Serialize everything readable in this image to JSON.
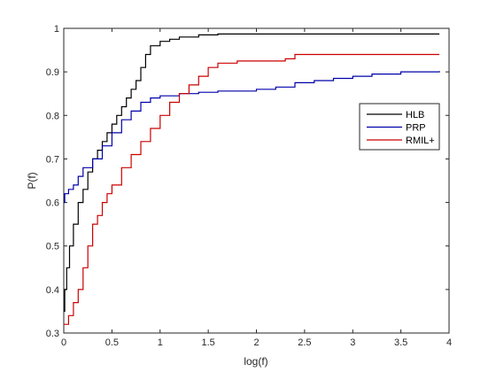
{
  "chart_data": {
    "type": "line",
    "xlabel": "log(f)",
    "ylabel": "P(f)",
    "xlim": [
      0,
      4
    ],
    "ylim": [
      0.3,
      1
    ],
    "xticks": [
      "0",
      "0.5",
      "1",
      "1.5",
      "2",
      "2.5",
      "3",
      "3.5",
      "4"
    ],
    "yticks": [
      "0.3",
      "0.4",
      "0.5",
      "0.6",
      "0.7",
      "0.8",
      "0.9",
      "1"
    ],
    "grid": false,
    "legend_position": "right",
    "series": [
      {
        "name": "HLB",
        "color": "#000000",
        "points": [
          [
            0,
            0.35
          ],
          [
            0.01,
            0.4
          ],
          [
            0.03,
            0.45
          ],
          [
            0.06,
            0.5
          ],
          [
            0.1,
            0.55
          ],
          [
            0.15,
            0.6
          ],
          [
            0.2,
            0.63
          ],
          [
            0.25,
            0.67
          ],
          [
            0.3,
            0.7
          ],
          [
            0.35,
            0.72
          ],
          [
            0.4,
            0.74
          ],
          [
            0.45,
            0.76
          ],
          [
            0.5,
            0.78
          ],
          [
            0.55,
            0.8
          ],
          [
            0.6,
            0.82
          ],
          [
            0.65,
            0.84
          ],
          [
            0.7,
            0.86
          ],
          [
            0.75,
            0.88
          ],
          [
            0.8,
            0.91
          ],
          [
            0.85,
            0.94
          ],
          [
            0.9,
            0.96
          ],
          [
            1.0,
            0.97
          ],
          [
            1.1,
            0.975
          ],
          [
            1.2,
            0.98
          ],
          [
            1.4,
            0.985
          ],
          [
            1.6,
            0.987
          ],
          [
            3.9,
            0.987
          ]
        ]
      },
      {
        "name": "PRP",
        "color": "#0000aa",
        "points": [
          [
            0,
            0.6
          ],
          [
            0.01,
            0.62
          ],
          [
            0.05,
            0.63
          ],
          [
            0.1,
            0.64
          ],
          [
            0.15,
            0.66
          ],
          [
            0.2,
            0.68
          ],
          [
            0.3,
            0.7
          ],
          [
            0.4,
            0.73
          ],
          [
            0.5,
            0.76
          ],
          [
            0.6,
            0.79
          ],
          [
            0.7,
            0.81
          ],
          [
            0.8,
            0.83
          ],
          [
            0.9,
            0.84
          ],
          [
            1.0,
            0.845
          ],
          [
            1.2,
            0.85
          ],
          [
            1.4,
            0.853
          ],
          [
            1.6,
            0.856
          ],
          [
            2.0,
            0.86
          ],
          [
            2.2,
            0.865
          ],
          [
            2.4,
            0.875
          ],
          [
            2.6,
            0.88
          ],
          [
            2.8,
            0.885
          ],
          [
            3.0,
            0.89
          ],
          [
            3.2,
            0.895
          ],
          [
            3.5,
            0.9
          ],
          [
            3.9,
            0.902
          ]
        ]
      },
      {
        "name": "RMIL+",
        "color": "#cc0000",
        "points": [
          [
            0,
            0.32
          ],
          [
            0.05,
            0.34
          ],
          [
            0.1,
            0.37
          ],
          [
            0.15,
            0.4
          ],
          [
            0.2,
            0.45
          ],
          [
            0.25,
            0.5
          ],
          [
            0.3,
            0.55
          ],
          [
            0.35,
            0.57
          ],
          [
            0.4,
            0.6
          ],
          [
            0.45,
            0.62
          ],
          [
            0.5,
            0.64
          ],
          [
            0.6,
            0.68
          ],
          [
            0.7,
            0.71
          ],
          [
            0.8,
            0.74
          ],
          [
            0.9,
            0.77
          ],
          [
            1.0,
            0.8
          ],
          [
            1.1,
            0.83
          ],
          [
            1.2,
            0.85
          ],
          [
            1.3,
            0.87
          ],
          [
            1.4,
            0.89
          ],
          [
            1.5,
            0.91
          ],
          [
            1.6,
            0.92
          ],
          [
            1.8,
            0.925
          ],
          [
            2.0,
            0.925
          ],
          [
            2.3,
            0.93
          ],
          [
            2.4,
            0.94
          ],
          [
            3.9,
            0.94
          ]
        ]
      }
    ]
  }
}
